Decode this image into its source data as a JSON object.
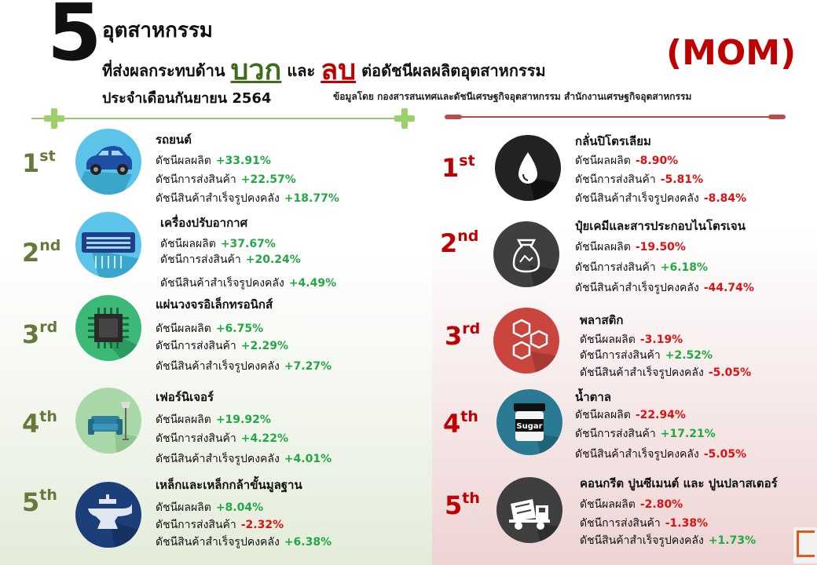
{
  "header": {
    "number": "5",
    "line1": "อุตสาหกรรม",
    "line2_a": "ที่ส่งผลกระทบด้าน",
    "positive_word": "บวก",
    "line2_b": "และ",
    "negative_word": "ลบ",
    "line2_c": "ต่อดัชนีผลผลิตอุตสาหกรรม",
    "line3": "ประจำเดือนกันยายน 2564",
    "badge": "(MOM)",
    "source": "ข้อมูลโดย กองสารสนเทศและดัชนีเศรษฐกิจอุตสาหกรรม สำนักงานเศรษฐกิจอุตสาหกรรม"
  },
  "labels": {
    "production": "ดัชนีผลผลิต",
    "shipment": "ดัชนีการส่งสินค้า",
    "inventory": "ดัชนีสินค้าสำเร็จรูปคงคลัง"
  },
  "positive": [
    {
      "rank": "1",
      "suffix": "st",
      "name": "รถยนต์",
      "icon": "car-icon",
      "production": "+33.91%",
      "shipment": "+22.57%",
      "inventory": "+18.77%"
    },
    {
      "rank": "2",
      "suffix": "nd",
      "name": "เครื่องปรับอากาศ",
      "icon": "air-conditioner-icon",
      "production": "+37.67%",
      "shipment": "+20.24%",
      "inventory": "+4.49%"
    },
    {
      "rank": "3",
      "suffix": "rd",
      "name": "แผ่นวงจรอิเล็กทรอนิกส์",
      "icon": "circuit-chip-icon",
      "production": "+6.75%",
      "shipment": "+2.29%",
      "inventory": "+7.27%"
    },
    {
      "rank": "4",
      "suffix": "th",
      "name": "เฟอร์นิเจอร์",
      "icon": "furniture-icon",
      "production": "+19.92%",
      "shipment": "+4.22%",
      "inventory": "+4.01%"
    },
    {
      "rank": "5",
      "suffix": "th",
      "name": "เหล็กและเหล็กกล้าขั้นมูลฐาน",
      "icon": "anvil-icon",
      "production": "+8.04%",
      "shipment": "-2.32%",
      "inventory": "+6.38%"
    }
  ],
  "negative": [
    {
      "rank": "1",
      "suffix": "st",
      "name": "กลั่นปิโตรเลียม",
      "icon": "oil-drop-icon",
      "production": "-8.90%",
      "shipment": "-5.81%",
      "inventory": "-8.84%"
    },
    {
      "rank": "2",
      "suffix": "nd",
      "name": "ปุ๋ยเคมีและสารประกอบไนโตรเจน",
      "icon": "fertilizer-bag-icon",
      "production": "-19.50%",
      "shipment": "+6.18%",
      "inventory": "-44.74%"
    },
    {
      "rank": "3",
      "suffix": "rd",
      "name": "พลาสติก",
      "icon": "hexagon-plastic-icon",
      "production": "-3.19%",
      "shipment": "+2.52%",
      "inventory": "-5.05%"
    },
    {
      "rank": "4",
      "suffix": "th",
      "name": "น้ำตาล",
      "icon": "sugar-jar-icon",
      "sugar_label": "Sugar",
      "production": "-22.94%",
      "shipment": "+17.21%",
      "inventory": "-5.05%"
    },
    {
      "rank": "5",
      "suffix": "th",
      "name": "คอนกรีต ปูนซีเมนต์ และ ปูนปลาสเตอร์",
      "icon": "cement-mixer-icon",
      "production": "-2.80%",
      "shipment": "-1.38%",
      "inventory": "+1.73%"
    }
  ],
  "colors": {
    "positive_accent": "#3f6b1d",
    "negative_accent": "#c00000",
    "value_up": "#22a843",
    "value_down": "#e01010"
  }
}
